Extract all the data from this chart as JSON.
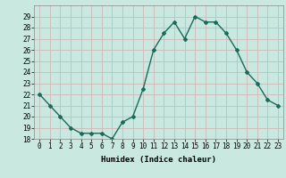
{
  "x": [
    0,
    1,
    2,
    3,
    4,
    5,
    6,
    7,
    8,
    9,
    10,
    11,
    12,
    13,
    14,
    15,
    16,
    17,
    18,
    19,
    20,
    21,
    22,
    23
  ],
  "y": [
    22,
    21,
    20,
    19,
    18.5,
    18.5,
    18.5,
    18,
    19.5,
    20,
    22.5,
    26,
    27.5,
    28.5,
    27,
    29,
    28.5,
    28.5,
    27.5,
    26,
    24,
    23,
    21.5,
    21
  ],
  "line_color": "#1a6b5a",
  "marker": "D",
  "marker_size": 2,
  "bg_color": "#c8e8e0",
  "grid_color": "#d0b8b8",
  "xlabel": "Humidex (Indice chaleur)",
  "ylim": [
    18,
    30
  ],
  "xlim": [
    -0.5,
    23.5
  ],
  "yticks": [
    18,
    19,
    20,
    21,
    22,
    23,
    24,
    25,
    26,
    27,
    28,
    29
  ],
  "xticks": [
    0,
    1,
    2,
    3,
    4,
    5,
    6,
    7,
    8,
    9,
    10,
    11,
    12,
    13,
    14,
    15,
    16,
    17,
    18,
    19,
    20,
    21,
    22,
    23
  ],
  "xlabel_fontsize": 6.5,
  "tick_fontsize": 5.5,
  "line_width": 1.0
}
